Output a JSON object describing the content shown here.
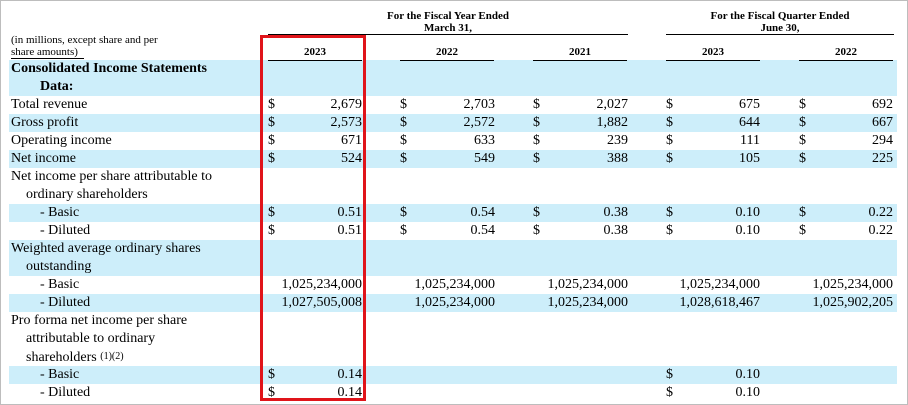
{
  "header": {
    "fiscal_year_title": "For the Fiscal Year Ended",
    "fiscal_year_sub": "March 31,",
    "fiscal_quarter_title": "For the Fiscal Quarter Ended",
    "fiscal_quarter_sub": "June 30,",
    "units_note_1": "(in millions, except share and per",
    "units_note_2": "share amounts)",
    "years": [
      "2023",
      "2022",
      "2021",
      "2023",
      "2022"
    ]
  },
  "section_title": [
    "Consolidated Income Statements",
    "Data:"
  ],
  "rows": {
    "total_revenue": {
      "label": "Total revenue",
      "values": [
        "2,679",
        "2,703",
        "2,027",
        "675",
        "692"
      ]
    },
    "gross_profit": {
      "label": "Gross profit",
      "values": [
        "2,573",
        "2,572",
        "1,882",
        "644",
        "667"
      ]
    },
    "operating_income": {
      "label": "Operating income",
      "values": [
        "671",
        "633",
        "239",
        "111",
        "294"
      ]
    },
    "net_income": {
      "label": "Net income",
      "values": [
        "524",
        "549",
        "388",
        "105",
        "225"
      ]
    },
    "nips_title": [
      "Net income per share attributable to",
      "ordinary shareholders"
    ],
    "nips_basic": {
      "label": "- Basic",
      "values": [
        "0.51",
        "0.54",
        "0.38",
        "0.10",
        "0.22"
      ]
    },
    "nips_diluted": {
      "label": "- Diluted",
      "values": [
        "0.51",
        "0.54",
        "0.38",
        "0.10",
        "0.22"
      ]
    },
    "wa_title": [
      "Weighted average ordinary shares",
      "outstanding"
    ],
    "wa_basic": {
      "label": "- Basic",
      "values": [
        "1,025,234,000",
        "1,025,234,000",
        "1,025,234,000",
        "1,025,234,000",
        "1,025,234,000"
      ]
    },
    "wa_diluted": {
      "label": "- Diluted",
      "values": [
        "1,027,505,008",
        "1,025,234,000",
        "1,025,234,000",
        "1,028,618,467",
        "1,025,902,205"
      ]
    },
    "pf_title": [
      "Pro forma net income per share",
      "attributable to ordinary",
      "shareholders"
    ],
    "pf_footnote": "(1)(2)",
    "pf_basic": {
      "label": "- Basic",
      "values": [
        "0.14",
        "0.10"
      ]
    },
    "pf_diluted": {
      "label": "- Diluted",
      "values": [
        "0.14",
        "0.10"
      ]
    }
  },
  "currency_symbol": "$",
  "highlight_color": "#e0141a",
  "band_color": "#cdeefa"
}
